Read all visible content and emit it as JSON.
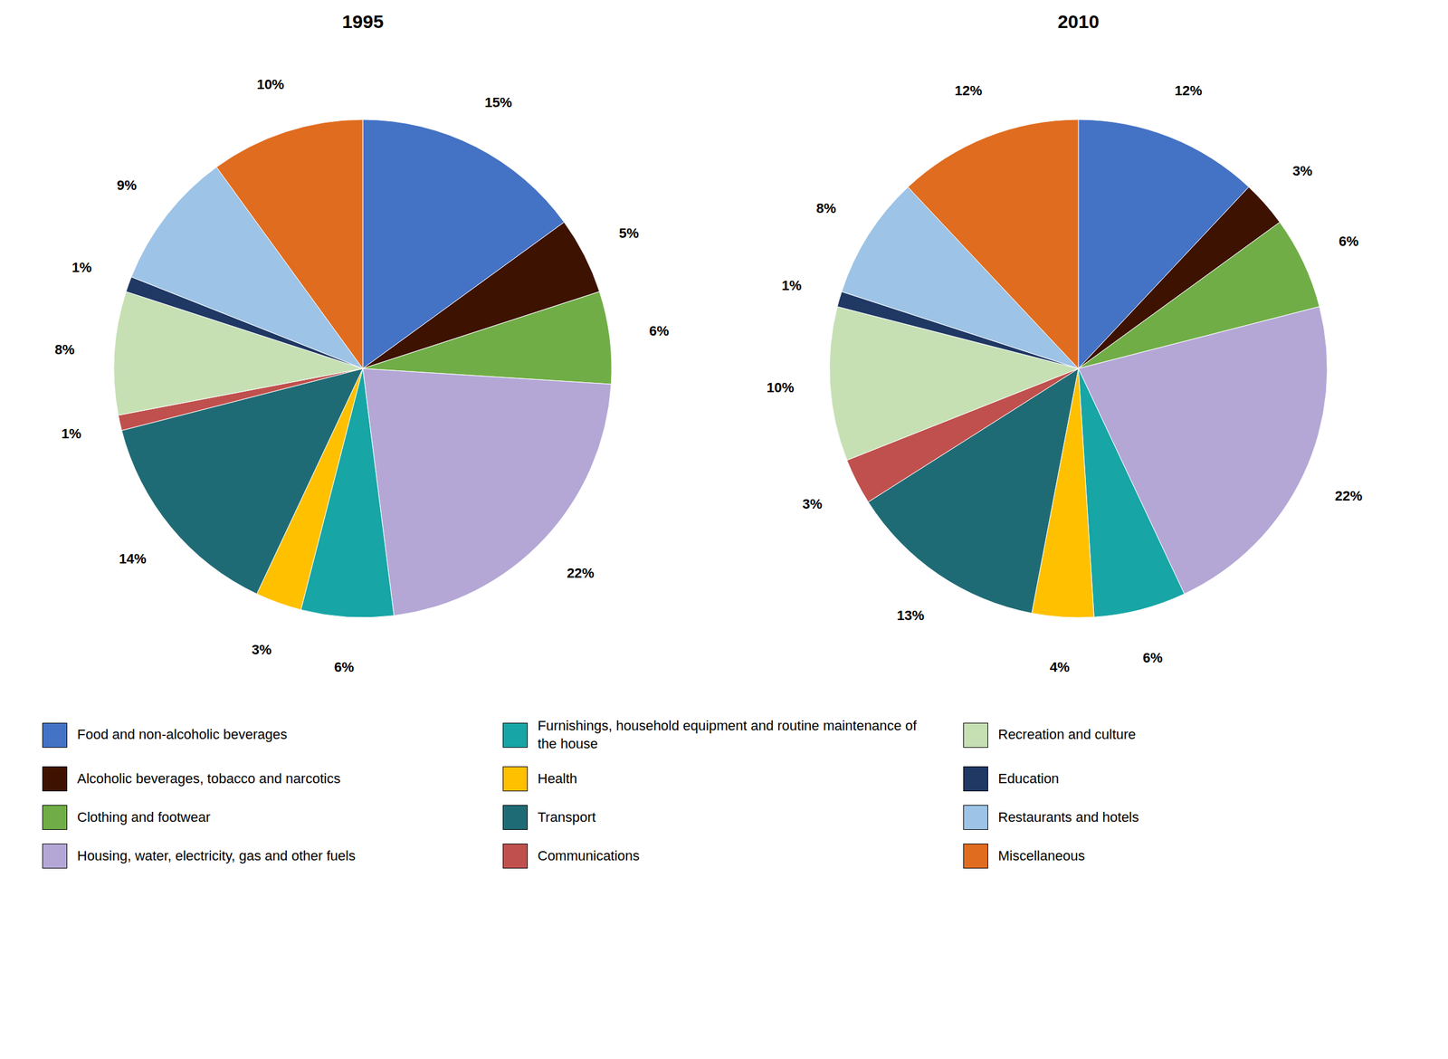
{
  "chart_data": [
    {
      "type": "pie",
      "title": "1995",
      "categories": [
        "Food and non-alcoholic beverages",
        "Alcoholic beverages, tobacco and narcotics",
        "Clothing and footwear",
        "Housing, water, electricity, gas and other fuels",
        "Furnishings, household equipment and routine maintenance of the house",
        "Health",
        "Transport",
        "Communications",
        "Recreation and culture",
        "Education",
        "Restaurants and hotels",
        "Miscellaneous"
      ],
      "values": [
        15,
        5,
        6,
        22,
        6,
        3,
        14,
        1,
        8,
        1,
        9,
        10
      ],
      "value_labels": [
        "15%",
        "5%",
        "6%",
        "22%",
        "6%",
        "3%",
        "14%",
        "1%",
        "8%",
        "1%",
        "9%",
        "10%"
      ],
      "colors": [
        "#4472C4",
        "#3D1200",
        "#70AD47",
        "#B4A7D6",
        "#17A5A5",
        "#FFC000",
        "#1F6B75",
        "#C0504D",
        "#C6E0B4",
        "#1F3864",
        "#9DC3E6",
        "#E06C1F"
      ],
      "data_labels": true,
      "legend": "bottom"
    },
    {
      "type": "pie",
      "title": "2010",
      "categories": [
        "Food and non-alcoholic beverages",
        "Alcoholic beverages, tobacco and narcotics",
        "Clothing and footwear",
        "Housing, water, electricity, gas and other fuels",
        "Furnishings, household equipment and routine maintenance of the house",
        "Health",
        "Transport",
        "Communications",
        "Recreation and culture",
        "Education",
        "Restaurants and hotels",
        "Miscellaneous"
      ],
      "values": [
        12,
        3,
        6,
        22,
        6,
        4,
        13,
        3,
        10,
        1,
        8,
        12
      ],
      "value_labels": [
        "12%",
        "3%",
        "6%",
        "22%",
        "6%",
        "4%",
        "13%",
        "3%",
        "10%",
        "1%",
        "8%",
        "12%"
      ],
      "colors": [
        "#4472C4",
        "#3D1200",
        "#70AD47",
        "#B4A7D6",
        "#17A5A5",
        "#FFC000",
        "#1F6B75",
        "#C0504D",
        "#C6E0B4",
        "#1F3864",
        "#9DC3E6",
        "#E06C1F"
      ],
      "data_labels": true,
      "legend": "bottom"
    }
  ]
}
